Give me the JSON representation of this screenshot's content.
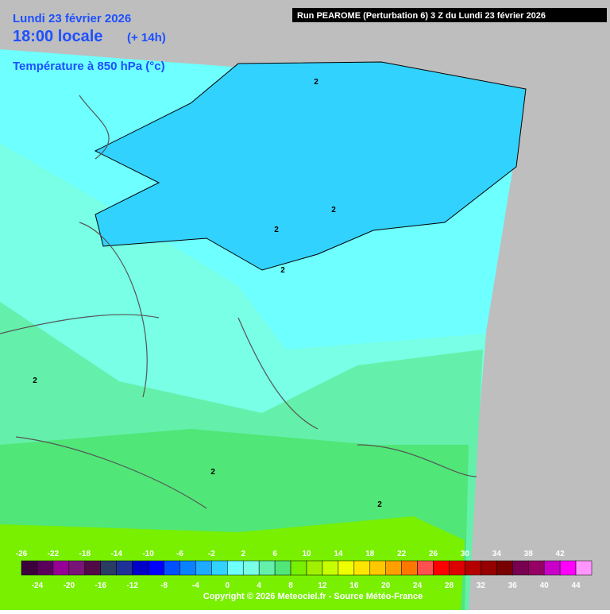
{
  "header": {
    "date": "Lundi 23 février 2026",
    "time": "18:00 locale",
    "lead": "(+ 14h)",
    "field": "Température à 850 hPa (°c)",
    "run": "Run PEAROME (Perturbation 6) 3 Z du Lundi 23 février 2026"
  },
  "contour_labels": [
    "2",
    "2",
    "2",
    "2",
    "2",
    "2",
    "2"
  ],
  "colorbar": {
    "values": [
      -26,
      -24,
      -22,
      -20,
      -18,
      -16,
      -14,
      -12,
      -10,
      -8,
      -6,
      -4,
      -2,
      0,
      2,
      4,
      6,
      8,
      10,
      12,
      14,
      16,
      18,
      20,
      22,
      24,
      26,
      28,
      30,
      32,
      34,
      36,
      38,
      40,
      42,
      44
    ],
    "colors": [
      "#3c003c",
      "#5a005a",
      "#960096",
      "#781478",
      "#500a46",
      "#283c64",
      "#1e3296",
      "#0000c8",
      "#0000ff",
      "#0050ff",
      "#0a82ff",
      "#1eaaff",
      "#32d2ff",
      "#6effff",
      "#78ffe6",
      "#64f0aa",
      "#50e678",
      "#78f000",
      "#a0f000",
      "#c8ff00",
      "#f0ff00",
      "#ffe600",
      "#ffc800",
      "#ffa000",
      "#ff7800",
      "#ff5050",
      "#ff0000",
      "#dc0000",
      "#b40000",
      "#960000",
      "#780000",
      "#780050",
      "#960064",
      "#c800c8",
      "#ff00ff",
      "#ff96ff"
    ]
  },
  "copyright": "Copyright © 2026 Meteociel.fr - Source Météo-France"
}
